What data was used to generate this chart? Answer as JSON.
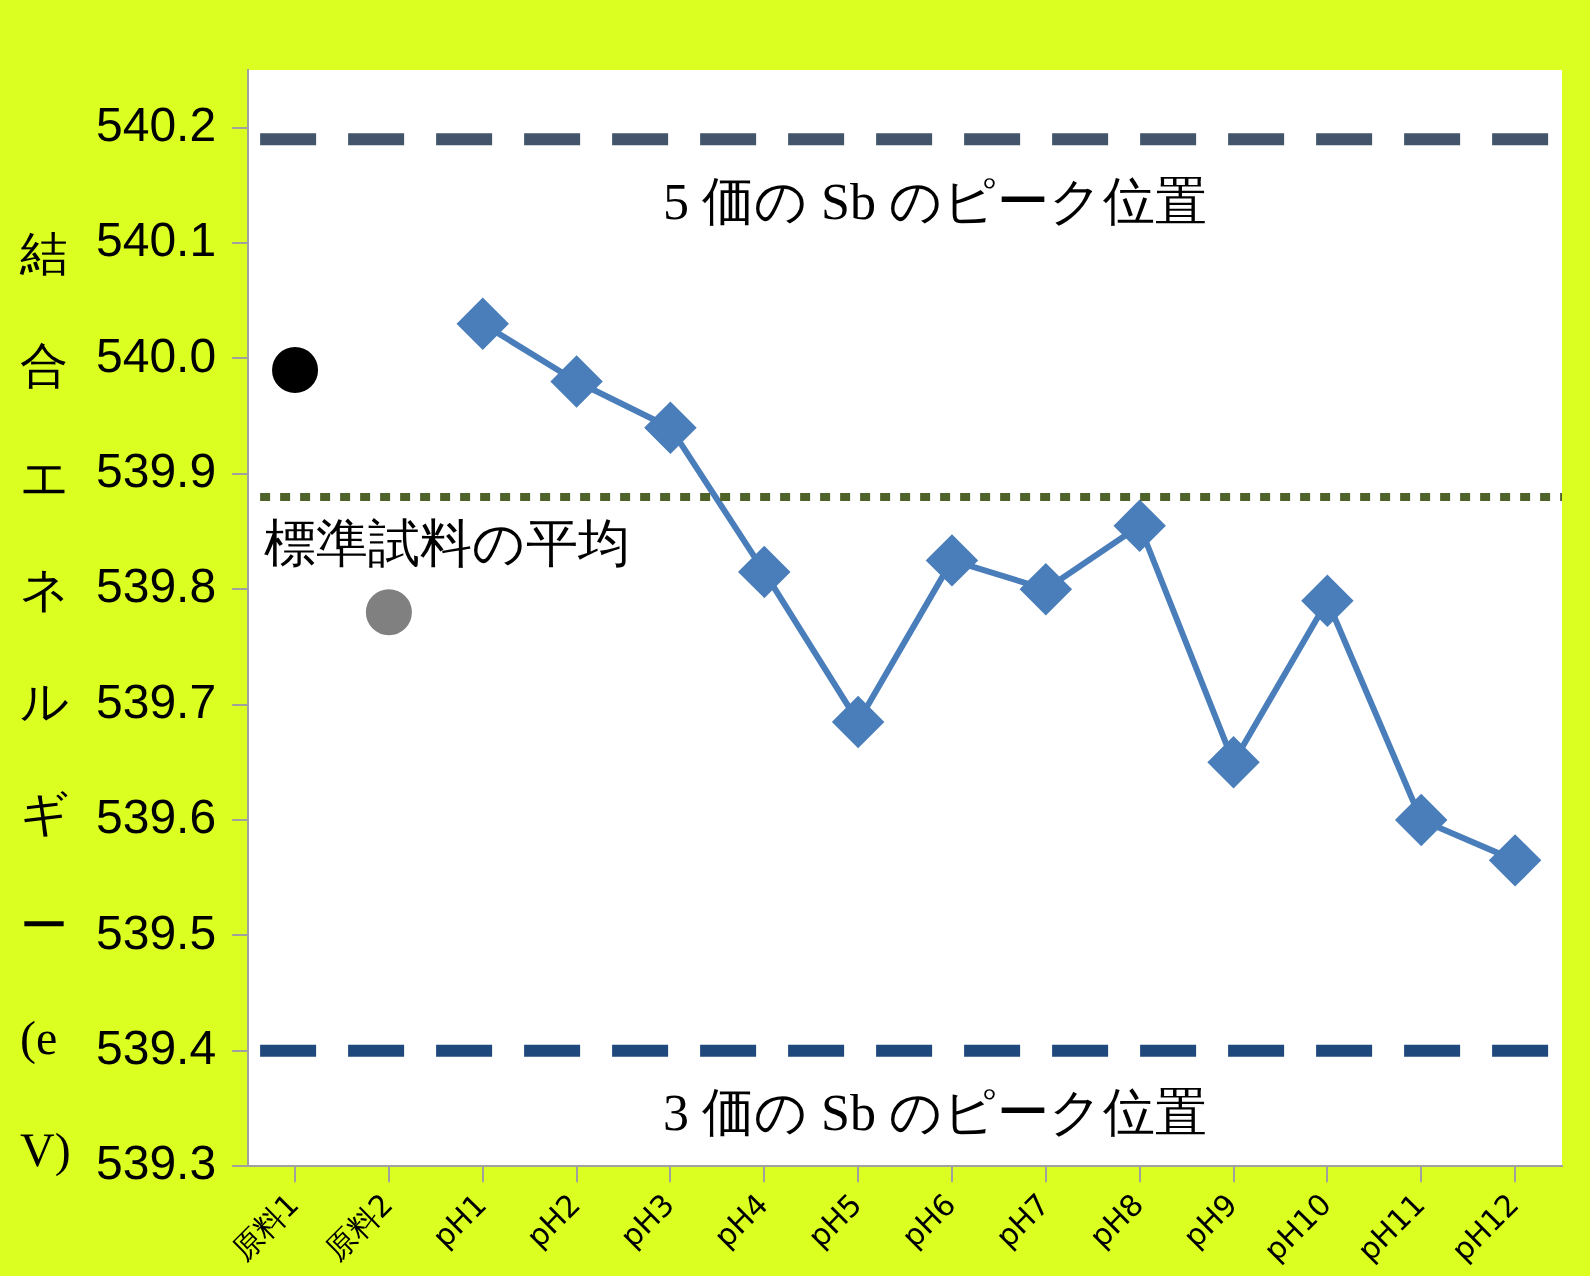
{
  "chart_data": {
    "type": "line",
    "ylabel": "結合エネルギー(eV)",
    "categories": [
      "原料1",
      "原料2",
      "pH1",
      "pH2",
      "pH3",
      "pH4",
      "pH5",
      "pH6",
      "pH7",
      "pH8",
      "pH9",
      "pH10",
      "pH11",
      "pH12"
    ],
    "series": [
      {
        "type": "scatter",
        "color": "#000000",
        "marker": "circle",
        "values": [
          539.99,
          null,
          null,
          null,
          null,
          null,
          null,
          null,
          null,
          null,
          null,
          null,
          null,
          null
        ]
      },
      {
        "type": "scatter",
        "color": "#808080",
        "marker": "circle",
        "values": [
          null,
          539.78,
          null,
          null,
          null,
          null,
          null,
          null,
          null,
          null,
          null,
          null,
          null,
          null
        ]
      },
      {
        "color": "#4a7ebb",
        "marker": "diamond",
        "values": [
          null,
          null,
          540.03,
          539.98,
          539.94,
          539.815,
          539.685,
          539.825,
          539.8,
          539.855,
          539.65,
          539.79,
          539.6,
          539.565
        ]
      }
    ],
    "ylim": [
      539.3,
      540.25
    ],
    "yticks": [
      539.3,
      {
        "value": 539.4,
        "label": "539.4"
      },
      539.5,
      539.6,
      539.7,
      539.8,
      539.9,
      {
        "value": 540.0,
        "label": "540.0"
      },
      540.1,
      540.2
    ],
    "ref_lines": [
      {
        "axis": "y",
        "value": 540.19,
        "label": "5 価の Sb のピーク位置",
        "color": "#44546a",
        "line_style": "dashed"
      },
      {
        "axis": "y",
        "value": 539.88,
        "label": "標準試料の平均",
        "color": "#4f6228",
        "line_style": "dotted"
      },
      {
        "axis": "y",
        "value": 539.4,
        "label": "3 価の Sb のピーク位置",
        "color": "#1f497d",
        "line_style": "dashed"
      }
    ],
    "grid": false,
    "legend": false
  }
}
